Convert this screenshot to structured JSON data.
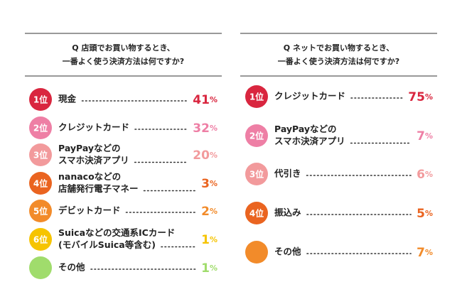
{
  "unit": "%",
  "panels": [
    {
      "question": [
        "Q 店頭でお買い物するとき、",
        "一番よく使う決済方法は何ですか?"
      ],
      "items": [
        {
          "rank": "1位",
          "name": [
            "現金"
          ],
          "value": 41,
          "color": "#d9263f"
        },
        {
          "rank": "2位",
          "name": [
            "クレジットカード"
          ],
          "value": 32,
          "color": "#ee7fa5"
        },
        {
          "rank": "3位",
          "name": [
            "PayPayなどの",
            "スマホ決済アプリ"
          ],
          "value": 20,
          "color": "#f29a9c"
        },
        {
          "rank": "4位",
          "name": [
            "nanacoなどの",
            "店舗発行電子マネー"
          ],
          "value": 3,
          "color": "#ea6420"
        },
        {
          "rank": "5位",
          "name": [
            "デビットカード"
          ],
          "value": 2,
          "color": "#f28b2a"
        },
        {
          "rank": "6位",
          "name": [
            "Suicaなどの交通系ICカード",
            "(モバイルSuica等含む)"
          ],
          "value": 1,
          "color": "#f6c400"
        },
        {
          "name": [
            "その他"
          ],
          "value": 1,
          "color": "#a0dc6c"
        }
      ]
    },
    {
      "question": [
        "Q ネットでお買い物するとき、",
        "一番よく使う決済方法は何ですか?"
      ],
      "items": [
        {
          "rank": "1位",
          "name": [
            "クレジットカード"
          ],
          "value": 75,
          "color": "#d9263f"
        },
        {
          "rank": "2位",
          "name": [
            "PayPayなどの",
            "スマホ決済アプリ"
          ],
          "value": 7,
          "color": "#ee7fa5"
        },
        {
          "rank": "3位",
          "name": [
            "代引き"
          ],
          "value": 6,
          "color": "#f29a9c"
        },
        {
          "rank": "4位",
          "name": [
            "振込み"
          ],
          "value": 5,
          "color": "#ea6420"
        },
        {
          "name": [
            "その他"
          ],
          "value": 7,
          "color": "#f28b2a"
        }
      ]
    }
  ]
}
